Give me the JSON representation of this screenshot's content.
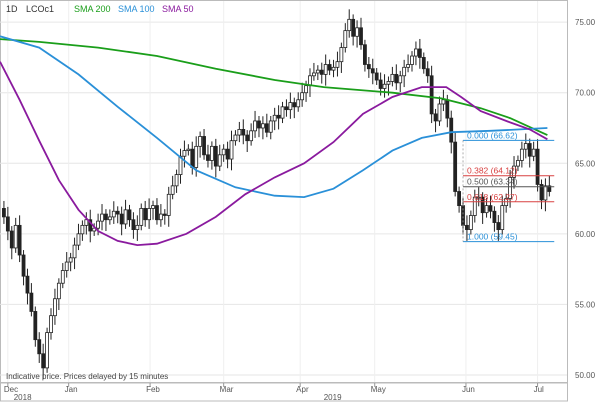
{
  "header": {
    "interval": "1D",
    "symbol": "LCOc1",
    "legend": [
      {
        "label": "SMA 200",
        "color": "#1a9e1a"
      },
      {
        "label": "SMA 100",
        "color": "#2a90d8"
      },
      {
        "label": "SMA 50",
        "color": "#8a1a9e"
      }
    ]
  },
  "footer": {
    "note": "Indicative price. Prices delayed by 15 minutes"
  },
  "chart_data": {
    "type": "candlestick",
    "ylim": [
      49.5,
      76.5
    ],
    "xlim": [
      0,
      578
    ],
    "y_ticks": [
      {
        "value": 50,
        "label": "50.00"
      },
      {
        "value": 55,
        "label": "55.00"
      },
      {
        "value": 60,
        "label": "60.00"
      },
      {
        "value": 65,
        "label": "65.00"
      },
      {
        "value": 70,
        "label": "70.00"
      },
      {
        "value": 75,
        "label": "75.00"
      }
    ],
    "x_ticks": [
      {
        "x": 8,
        "label": "Dec"
      },
      {
        "x": 70,
        "label": "Jan"
      },
      {
        "x": 153,
        "label": "Feb"
      },
      {
        "x": 228,
        "label": "Mar"
      },
      {
        "x": 306,
        "label": "Apr"
      },
      {
        "x": 382,
        "label": "May"
      },
      {
        "x": 475,
        "label": "Jun"
      },
      {
        "x": 548,
        "label": "Jul"
      }
    ],
    "years": [
      {
        "x": 14,
        "label": "2018"
      },
      {
        "x": 330,
        "label": "2019"
      }
    ],
    "close_points": [
      [
        0,
        61.8
      ],
      [
        4,
        61.2
      ],
      [
        8,
        60.2
      ],
      [
        12,
        59.0
      ],
      [
        16,
        60.6
      ],
      [
        20,
        58.5
      ],
      [
        24,
        57.0
      ],
      [
        28,
        55.8
      ],
      [
        32,
        54.5
      ],
      [
        36,
        52.5
      ],
      [
        40,
        51.5
      ],
      [
        44,
        50.5
      ],
      [
        48,
        53.0
      ],
      [
        52,
        54.2
      ],
      [
        56,
        55.4
      ],
      [
        60,
        56.5
      ],
      [
        64,
        57.4
      ],
      [
        68,
        58.0
      ],
      [
        72,
        58.3
      ],
      [
        76,
        59.2
      ],
      [
        80,
        60.0
      ],
      [
        84,
        60.6
      ],
      [
        88,
        61.0
      ],
      [
        92,
        60.2
      ],
      [
        96,
        60.4
      ],
      [
        100,
        60.9
      ],
      [
        104,
        61.4
      ],
      [
        108,
        61.0
      ],
      [
        112,
        61.2
      ],
      [
        116,
        61.6
      ],
      [
        120,
        61.4
      ],
      [
        124,
        60.7
      ],
      [
        128,
        61.7
      ],
      [
        132,
        61.0
      ],
      [
        136,
        60.3
      ],
      [
        140,
        60.6
      ],
      [
        144,
        61.8
      ],
      [
        148,
        61.0
      ],
      [
        152,
        61.8
      ],
      [
        156,
        62.0
      ],
      [
        160,
        61.0
      ],
      [
        164,
        61.4
      ],
      [
        168,
        61.3
      ],
      [
        172,
        62.8
      ],
      [
        176,
        63.4
      ],
      [
        180,
        64.2
      ],
      [
        184,
        65.5
      ],
      [
        188,
        65.9
      ],
      [
        192,
        66.0
      ],
      [
        196,
        64.7
      ],
      [
        200,
        66.2
      ],
      [
        204,
        66.9
      ],
      [
        208,
        65.6
      ],
      [
        212,
        65.2
      ],
      [
        216,
        66.2
      ],
      [
        220,
        64.8
      ],
      [
        224,
        65.6
      ],
      [
        228,
        66.0
      ],
      [
        232,
        65.3
      ],
      [
        236,
        66.6
      ],
      [
        240,
        67.0
      ],
      [
        244,
        67.4
      ],
      [
        248,
        67.0
      ],
      [
        252,
        66.6
      ],
      [
        256,
        67.3
      ],
      [
        260,
        68.0
      ],
      [
        264,
        67.5
      ],
      [
        268,
        67.8
      ],
      [
        272,
        67.2
      ],
      [
        276,
        68.0
      ],
      [
        280,
        68.4
      ],
      [
        284,
        68.2
      ],
      [
        288,
        69.0
      ],
      [
        292,
        68.8
      ],
      [
        296,
        69.3
      ],
      [
        300,
        69.0
      ],
      [
        304,
        69.5
      ],
      [
        308,
        70.0
      ],
      [
        312,
        70.5
      ],
      [
        316,
        71.2
      ],
      [
        320,
        71.4
      ],
      [
        324,
        71.6
      ],
      [
        328,
        71.3
      ],
      [
        332,
        72.0
      ],
      [
        336,
        71.6
      ],
      [
        340,
        71.8
      ],
      [
        344,
        72.2
      ],
      [
        348,
        73.2
      ],
      [
        352,
        74.4
      ],
      [
        356,
        75.2
      ],
      [
        360,
        74.0
      ],
      [
        364,
        74.6
      ],
      [
        368,
        73.4
      ],
      [
        372,
        72.0
      ],
      [
        376,
        71.7
      ],
      [
        380,
        71.4
      ],
      [
        384,
        70.9
      ],
      [
        388,
        70.3
      ],
      [
        392,
        70.6
      ],
      [
        396,
        70.8
      ],
      [
        400,
        71.3
      ],
      [
        404,
        70.7
      ],
      [
        408,
        71.2
      ],
      [
        412,
        71.8
      ],
      [
        416,
        72.0
      ],
      [
        420,
        72.6
      ],
      [
        424,
        73.1
      ],
      [
        428,
        72.5
      ],
      [
        432,
        71.7
      ],
      [
        436,
        71.2
      ],
      [
        440,
        68.5
      ],
      [
        444,
        68.0
      ],
      [
        448,
        69.2
      ],
      [
        452,
        69.5
      ],
      [
        456,
        68.2
      ],
      [
        460,
        66.5
      ],
      [
        464,
        63.0
      ],
      [
        468,
        62.0
      ],
      [
        472,
        60.6
      ],
      [
        476,
        60.3
      ],
      [
        480,
        61.3
      ],
      [
        484,
        62.6
      ],
      [
        488,
        62.6
      ],
      [
        492,
        61.5
      ],
      [
        496,
        62.0
      ],
      [
        500,
        61.6
      ],
      [
        504,
        60.8
      ],
      [
        508,
        60.3
      ],
      [
        512,
        62.0
      ],
      [
        516,
        62.5
      ],
      [
        520,
        64.0
      ],
      [
        524,
        64.8
      ],
      [
        528,
        65.2
      ],
      [
        532,
        66.0
      ],
      [
        536,
        66.4
      ],
      [
        540,
        65.5
      ],
      [
        544,
        66.0
      ],
      [
        548,
        63.5
      ],
      [
        552,
        62.4
      ],
      [
        556,
        63.4
      ],
      [
        560,
        63.0
      ]
    ],
    "series": [
      {
        "name": "SMA 200",
        "color": "#1a9e1a",
        "points": [
          [
            0,
            73.8
          ],
          [
            40,
            73.6
          ],
          [
            100,
            73.2
          ],
          [
            160,
            72.6
          ],
          [
            220,
            71.7
          ],
          [
            280,
            70.9
          ],
          [
            330,
            70.4
          ],
          [
            400,
            70.0
          ],
          [
            450,
            69.6
          ],
          [
            490,
            68.9
          ],
          [
            520,
            68.2
          ],
          [
            558,
            67.0
          ]
        ]
      },
      {
        "name": "SMA 100",
        "color": "#2a90d8",
        "points": [
          [
            0,
            74.0
          ],
          [
            40,
            73.2
          ],
          [
            80,
            71.3
          ],
          [
            120,
            69.0
          ],
          [
            160,
            66.8
          ],
          [
            200,
            64.5
          ],
          [
            240,
            63.3
          ],
          [
            280,
            62.7
          ],
          [
            310,
            62.6
          ],
          [
            340,
            63.2
          ],
          [
            370,
            64.5
          ],
          [
            400,
            65.9
          ],
          [
            430,
            66.8
          ],
          [
            460,
            67.2
          ],
          [
            500,
            67.3
          ],
          [
            530,
            67.4
          ],
          [
            558,
            67.5
          ]
        ]
      },
      {
        "name": "SMA 50",
        "color": "#8a1a9e",
        "points": [
          [
            0,
            72.2
          ],
          [
            20,
            69.5
          ],
          [
            40,
            66.6
          ],
          [
            60,
            63.8
          ],
          [
            80,
            61.7
          ],
          [
            100,
            60.2
          ],
          [
            120,
            59.5
          ],
          [
            140,
            59.2
          ],
          [
            160,
            59.3
          ],
          [
            190,
            60.0
          ],
          [
            220,
            61.2
          ],
          [
            250,
            62.8
          ],
          [
            280,
            64.0
          ],
          [
            310,
            65.0
          ],
          [
            340,
            66.5
          ],
          [
            370,
            68.5
          ],
          [
            400,
            69.7
          ],
          [
            430,
            70.4
          ],
          [
            455,
            70.4
          ],
          [
            470,
            69.7
          ],
          [
            490,
            68.7
          ],
          [
            520,
            67.9
          ],
          [
            540,
            67.4
          ],
          [
            558,
            66.7
          ]
        ]
      }
    ],
    "fibonacci": {
      "x_start": 472,
      "x_end": 565,
      "levels": [
        {
          "label": "0.000 (66.62)",
          "value": 66.62,
          "color": "#2a90d8"
        },
        {
          "label": "0.382 (64.12)",
          "value": 64.12,
          "color": "#d84040"
        },
        {
          "label": "0.500 (63.34)",
          "value": 63.34,
          "color": "#555555"
        },
        {
          "label": "0.618 (62.27)",
          "value": 62.27,
          "color": "#d84040"
        },
        {
          "label": "1.000 (59.45)",
          "value": 59.45,
          "color": "#2a90d8"
        }
      ]
    }
  }
}
